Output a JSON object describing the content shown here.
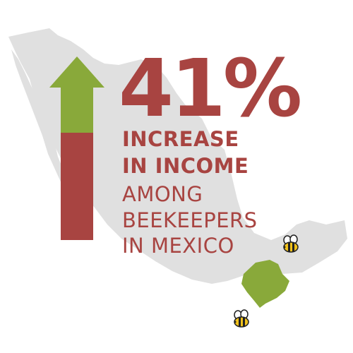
{
  "stat": {
    "value": "41%",
    "lines": [
      "INCREASE",
      "IN INCOME",
      "AMONG",
      "BEEKEEPERS",
      "IN MEXICO"
    ]
  },
  "colors": {
    "map": "#e0e0e0",
    "highlight_region": "#89a93a",
    "arrow_head": "#89a93a",
    "arrow_shaft": "#a84441",
    "text": "#a84441",
    "bee_body": "#f2c21b",
    "bee_stripe": "#222222"
  },
  "icons": [
    "mexico-map",
    "up-arrow-icon",
    "bee-icon",
    "bee-icon"
  ]
}
